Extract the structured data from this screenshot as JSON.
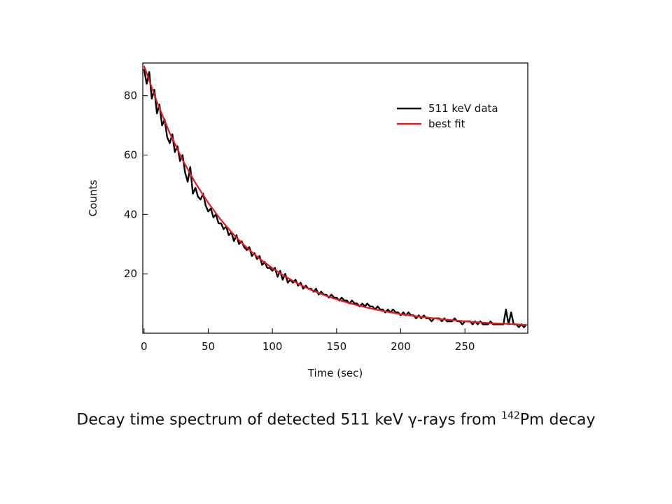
{
  "chart_data": {
    "type": "line",
    "xlabel": "Time (sec)",
    "ylabel": "Counts",
    "xlim": [
      -1,
      299
    ],
    "ylim": [
      0,
      91
    ],
    "xticks": [
      0,
      50,
      100,
      150,
      200,
      250
    ],
    "yticks": [
      20,
      40,
      60,
      80
    ],
    "grid": false,
    "legend_position": "top-right",
    "series": [
      {
        "name": "511 keV data",
        "color": "#000000",
        "x": [
          0,
          2,
          4,
          6,
          8,
          10,
          12,
          14,
          16,
          18,
          20,
          22,
          24,
          26,
          28,
          30,
          32,
          34,
          36,
          38,
          40,
          42,
          44,
          46,
          48,
          50,
          52,
          54,
          56,
          58,
          60,
          62,
          64,
          66,
          68,
          70,
          72,
          74,
          76,
          78,
          80,
          82,
          84,
          86,
          88,
          90,
          92,
          94,
          96,
          98,
          100,
          102,
          104,
          106,
          108,
          110,
          112,
          114,
          116,
          118,
          120,
          122,
          124,
          126,
          128,
          130,
          132,
          134,
          136,
          138,
          140,
          142,
          144,
          146,
          148,
          150,
          152,
          154,
          156,
          158,
          160,
          162,
          164,
          166,
          168,
          170,
          172,
          174,
          176,
          178,
          180,
          182,
          184,
          186,
          188,
          190,
          192,
          194,
          196,
          198,
          200,
          202,
          204,
          206,
          208,
          210,
          212,
          214,
          216,
          218,
          220,
          222,
          224,
          226,
          228,
          230,
          232,
          234,
          236,
          238,
          240,
          242,
          244,
          246,
          248,
          250,
          252,
          254,
          256,
          258,
          260,
          262,
          264,
          266,
          268,
          270,
          272,
          274,
          276,
          278,
          280,
          282,
          284,
          286,
          288,
          290,
          292,
          294,
          296,
          298
        ],
        "y": [
          89,
          84,
          88,
          79,
          82,
          74,
          77,
          70,
          72,
          66,
          64,
          67,
          61,
          63,
          58,
          60,
          54,
          51,
          56,
          47,
          49,
          46,
          45,
          47,
          43,
          41,
          42,
          39,
          40,
          37,
          37,
          35,
          36,
          33,
          34,
          31,
          33,
          30,
          31,
          29,
          28,
          29,
          26,
          27,
          25,
          26,
          23,
          24,
          22,
          22,
          21,
          22,
          19,
          21,
          18,
          20,
          17,
          18,
          17,
          18,
          16,
          17,
          15,
          16,
          15,
          15,
          14,
          15,
          13,
          14,
          13,
          13,
          12,
          13,
          12,
          12,
          11,
          12,
          11,
          11,
          10,
          11,
          10,
          10,
          9,
          10,
          9,
          10,
          9,
          9,
          8,
          9,
          8,
          8,
          7,
          8,
          7,
          8,
          7,
          7,
          6,
          7,
          6,
          7,
          6,
          6,
          5,
          6,
          5,
          6,
          5,
          5,
          4,
          5,
          5,
          5,
          4,
          5,
          4,
          4,
          4,
          5,
          4,
          4,
          3,
          4,
          4,
          4,
          3,
          4,
          3,
          4,
          3,
          3,
          3,
          4,
          3,
          3,
          3,
          3,
          3,
          8,
          3,
          7,
          3,
          3,
          2,
          3,
          2,
          3
        ]
      },
      {
        "name": "best fit",
        "color": "#e41a1c",
        "x": [
          0,
          10,
          20,
          30,
          40,
          50,
          60,
          70,
          80,
          90,
          100,
          110,
          120,
          130,
          140,
          150,
          160,
          170,
          180,
          190,
          200,
          210,
          220,
          230,
          240,
          250,
          260,
          270,
          280,
          290,
          298
        ],
        "y": [
          90.0,
          77.9,
          67.4,
          58.4,
          50.6,
          43.9,
          38.1,
          33.1,
          28.8,
          25.1,
          21.9,
          19.1,
          16.7,
          14.6,
          12.9,
          11.4,
          10.1,
          9.0,
          8.0,
          7.2,
          6.4,
          5.8,
          5.3,
          4.8,
          4.4,
          4.0,
          3.7,
          3.4,
          3.2,
          3.0,
          2.8
        ]
      }
    ]
  },
  "caption": {
    "prefix": "Decay time spectrum of detected 511 keV γ-rays from ",
    "superscript": "142",
    "suffix": "Pm decay"
  }
}
